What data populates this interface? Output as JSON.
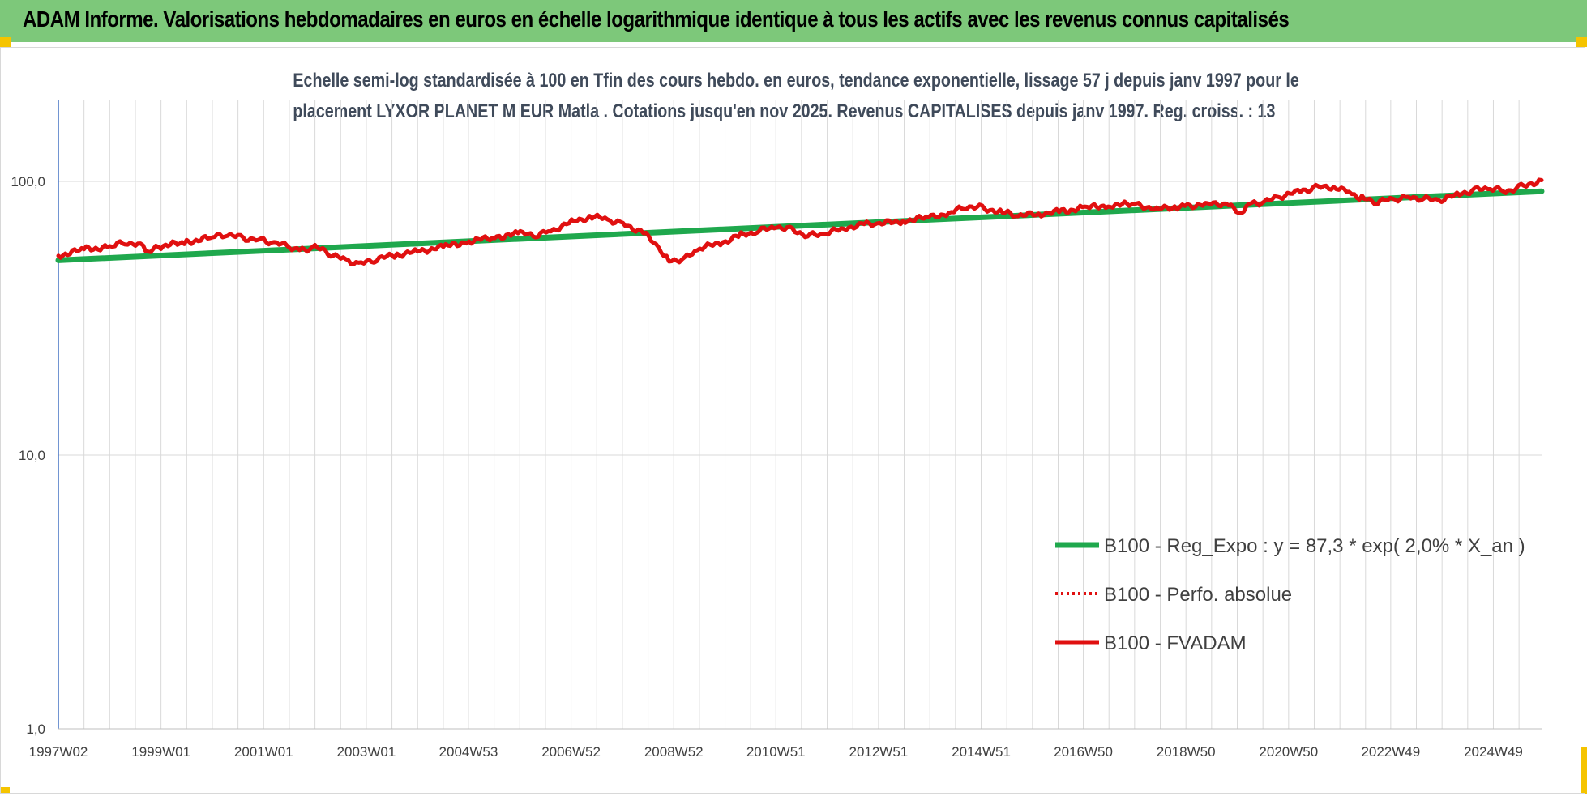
{
  "banner": {
    "title": "ADAM Informe. Valorisations hebdomadaires en euros en échelle logarithmique identique à tous les actifs avec les revenus connus capitalisés"
  },
  "colors": {
    "banner": "#7dc87a",
    "trend": "#1fa84d",
    "perf": "#e01010",
    "fvadam": "#e01010",
    "grid": "#d9d9d9",
    "axis": "#4472c4"
  },
  "chart_data": {
    "type": "line",
    "title_line1": "Echelle semi-log standardisée à 100 en Tfin des cours hebdo. en euros, tendance exponentielle, lissage 57 j depuis janv 1997 pour le",
    "title_line2": "placement LYXOR PLANET M EUR Matla . Cotations jusqu'en nov 2025. Revenus CAPITALISES depuis janv 1997. Reg. croiss. : 13",
    "y_scale": "log",
    "ylim": [
      1,
      200
    ],
    "y_ticks": [
      {
        "value": 1,
        "label": "1,0"
      },
      {
        "value": 10,
        "label": "10,0"
      },
      {
        "value": 100,
        "label": "100,0"
      }
    ],
    "xlim": [
      1997.0,
      2025.9
    ],
    "x_ticks": [
      {
        "t": 1997.0,
        "label": "1997W02"
      },
      {
        "t": 1999.0,
        "label": "1999W01"
      },
      {
        "t": 2001.0,
        "label": "2001W01"
      },
      {
        "t": 2003.0,
        "label": "2003W01"
      },
      {
        "t": 2004.99,
        "label": "2004W53"
      },
      {
        "t": 2006.99,
        "label": "2006W52"
      },
      {
        "t": 2008.99,
        "label": "2008W52"
      },
      {
        "t": 2010.98,
        "label": "2010W51"
      },
      {
        "t": 2012.98,
        "label": "2012W51"
      },
      {
        "t": 2014.98,
        "label": "2014W51"
      },
      {
        "t": 2016.97,
        "label": "2016W50"
      },
      {
        "t": 2018.97,
        "label": "2018W50"
      },
      {
        "t": 2020.97,
        "label": "2020W50"
      },
      {
        "t": 2022.96,
        "label": "2022W49"
      },
      {
        "t": 2024.96,
        "label": "2024W49"
      }
    ],
    "legend_position": "bottom-right",
    "series": [
      {
        "name": "B100 - Reg_Expo : y = 87,3 * exp( 2,0% *  X_an )",
        "style": "solid-green",
        "x": [
          1997.0,
          2025.9
        ],
        "y": [
          51.5,
          92.0
        ]
      },
      {
        "name": "B100 - Perfo. absolue",
        "style": "dotted-red",
        "x": [],
        "y": []
      },
      {
        "name": "B100 - FVADAM",
        "style": "solid-red",
        "x": [
          1997.0,
          1997.5,
          1998.0,
          1998.3,
          1998.6,
          1998.75,
          1999.0,
          1999.5,
          2000.0,
          2000.3,
          2000.6,
          2000.9,
          2001.2,
          2001.5,
          2001.7,
          2002.0,
          2002.3,
          2002.6,
          2002.9,
          2003.2,
          2003.6,
          2004.0,
          2004.5,
          2005.0,
          2005.5,
          2006.0,
          2006.3,
          2006.6,
          2007.0,
          2007.4,
          2007.7,
          2008.0,
          2008.4,
          2008.7,
          2008.9,
          2009.2,
          2009.5,
          2009.9,
          2010.3,
          2010.6,
          2011.0,
          2011.3,
          2011.6,
          2011.9,
          2012.3,
          2012.7,
          2013.0,
          2013.5,
          2014.0,
          2014.4,
          2014.7,
          2015.0,
          2015.4,
          2015.7,
          2016.1,
          2016.5,
          2017.0,
          2017.5,
          2018.0,
          2018.4,
          2018.8,
          2019.0,
          2019.4,
          2019.8,
          2020.0,
          2020.2,
          2020.5,
          2020.8,
          2021.2,
          2021.5,
          2021.9,
          2022.2,
          2022.4,
          2022.7,
          2023.0,
          2023.3,
          2023.6,
          2023.9,
          2024.3,
          2024.6,
          2024.9,
          2025.2,
          2025.5,
          2025.9
        ],
        "y": [
          53.5,
          56.5,
          57.5,
          60.0,
          58.5,
          55.0,
          58.0,
          60.0,
          62.5,
          64.0,
          62.0,
          61.5,
          59.5,
          58.0,
          56.0,
          57.5,
          54.5,
          51.5,
          50.0,
          52.0,
          54.0,
          55.5,
          57.5,
          60.5,
          62.5,
          64.5,
          63.5,
          66.0,
          71.0,
          74.5,
          72.5,
          70.0,
          65.0,
          57.0,
          51.5,
          52.0,
          57.0,
          59.5,
          63.5,
          65.5,
          68.5,
          66.5,
          63.5,
          64.0,
          67.5,
          69.5,
          70.0,
          72.0,
          74.0,
          77.0,
          81.0,
          80.0,
          77.0,
          75.0,
          76.0,
          77.5,
          80.0,
          82.0,
          82.5,
          79.0,
          81.0,
          81.5,
          82.5,
          83.0,
          76.0,
          83.0,
          84.0,
          88.0,
          92.0,
          95.0,
          95.5,
          90.0,
          87.0,
          84.0,
          86.0,
          87.5,
          86.5,
          85.0,
          90.0,
          93.0,
          94.5,
          92.0,
          95.5,
          101.0
        ]
      }
    ]
  }
}
